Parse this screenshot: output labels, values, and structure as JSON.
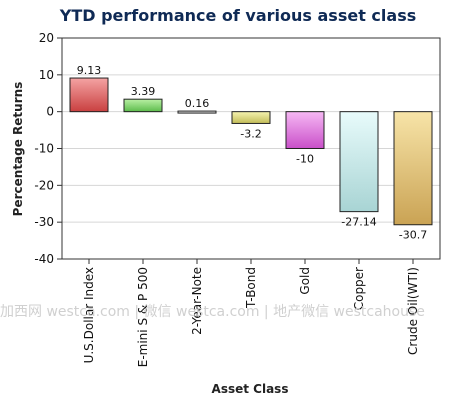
{
  "chart_data": {
    "type": "bar",
    "title": "YTD performance of various asset class",
    "xlabel": "Asset Class",
    "ylabel": "Percentage Returns",
    "ylim": [
      -40,
      20
    ],
    "yticks": [
      20,
      10,
      0,
      -10,
      -20,
      -30,
      -40
    ],
    "grid": true,
    "categories": [
      "U.S.Dollar Index",
      "E-mini S & P 500",
      "2-Year-Note",
      "T-Bond",
      "Gold",
      "Copper",
      "Crude Oil(WTI)"
    ],
    "values": [
      9.13,
      3.39,
      0.16,
      -3.2,
      -10,
      -27.14,
      -30.7
    ],
    "data_labels": [
      "9.13",
      "3.39",
      "0.16",
      "-3.2",
      "-10",
      "-27.14",
      "-30.7"
    ],
    "colors": [
      [
        "#f4a3a3",
        "#c94040"
      ],
      [
        "#b9f0a4",
        "#5cbc4c"
      ],
      [
        "#f0f0f0",
        "#c9c9c9"
      ],
      [
        "#f6f4b0",
        "#c2bc58"
      ],
      [
        "#f6b8f4",
        "#c94fc9"
      ],
      [
        "#e8fbfb",
        "#a8d4d4"
      ],
      [
        "#f7e4a8",
        "#caa354"
      ]
    ]
  },
  "watermark": "加西网 westca.com | 微信 westca.com | 地产微信 westcahouse"
}
